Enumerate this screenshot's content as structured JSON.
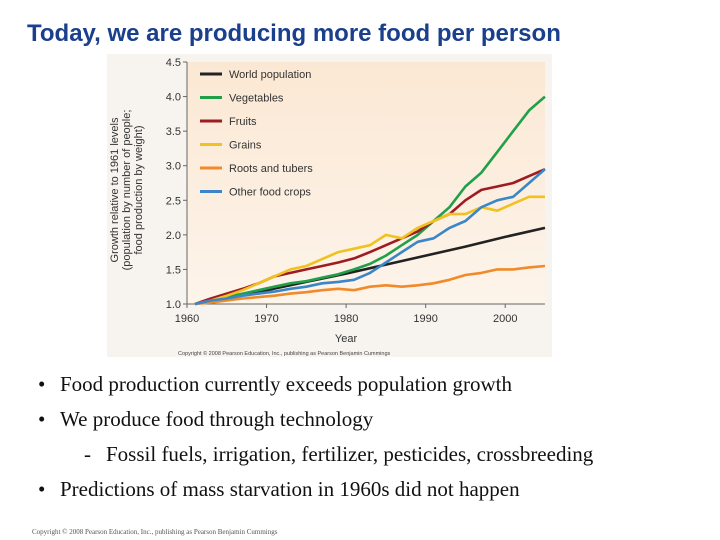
{
  "slide": {
    "title": "Today, we are producing more food per person",
    "footer": "Copyright © 2008 Pearson Education, Inc., publishing as Pearson Benjamin Cummings"
  },
  "bullets": [
    {
      "marker": "•",
      "text": "Food production currently exceeds population growth"
    },
    {
      "marker": "•",
      "text": "We produce food through technology"
    },
    {
      "marker": "-",
      "text": "Fossil fuels, irrigation, fertilizer, pesticides, crossbreeding",
      "sub": true
    },
    {
      "marker": "•",
      "text": "Predictions of mass starvation in 1960s did not happen"
    }
  ],
  "chart_data": {
    "type": "line",
    "title": "",
    "xlabel": "Year",
    "ylabel": [
      "Growth relative to 1961 levels",
      "(population by number of people;",
      "food production by weight)"
    ],
    "xlim": [
      1960,
      2005
    ],
    "ylim": [
      1.0,
      4.5
    ],
    "xticks": [
      "1960",
      "1970",
      "1980",
      "1990",
      "2000"
    ],
    "yticks": [
      "1.0",
      "1.5",
      "2.0",
      "2.5",
      "3.0",
      "3.5",
      "4.0",
      "4.5"
    ],
    "copyright": "Copyright © 2008 Pearson Education, Inc., publishing as Pearson Benjamin Cummings",
    "legend_position": "top-left",
    "series": [
      {
        "name": "World population",
        "color": "#222222",
        "x": [
          1961,
          1965,
          1970,
          1975,
          1980,
          1985,
          1990,
          1995,
          2000,
          2005
        ],
        "y": [
          1.0,
          1.1,
          1.2,
          1.32,
          1.44,
          1.57,
          1.7,
          1.83,
          1.97,
          2.1
        ]
      },
      {
        "name": "Vegetables",
        "color": "#21a04a",
        "x": [
          1961,
          1963,
          1965,
          1967,
          1969,
          1971,
          1973,
          1975,
          1977,
          1979,
          1981,
          1983,
          1985,
          1987,
          1989,
          1991,
          1993,
          1995,
          1997,
          1999,
          2001,
          2003,
          2005
        ],
        "y": [
          1.0,
          1.05,
          1.1,
          1.15,
          1.2,
          1.25,
          1.3,
          1.33,
          1.38,
          1.43,
          1.5,
          1.58,
          1.7,
          1.85,
          2.0,
          2.2,
          2.4,
          2.7,
          2.9,
          3.2,
          3.5,
          3.8,
          4.0
        ]
      },
      {
        "name": "Fruits",
        "color": "#9e1b22",
        "x": [
          1961,
          1963,
          1965,
          1967,
          1969,
          1971,
          1973,
          1975,
          1977,
          1979,
          1981,
          1983,
          1985,
          1987,
          1989,
          1991,
          1993,
          1995,
          1997,
          1999,
          2001,
          2003,
          2005
        ],
        "y": [
          1.0,
          1.08,
          1.15,
          1.22,
          1.3,
          1.4,
          1.45,
          1.5,
          1.55,
          1.6,
          1.66,
          1.75,
          1.85,
          1.95,
          2.05,
          2.2,
          2.3,
          2.5,
          2.65,
          2.7,
          2.75,
          2.85,
          2.95
        ]
      },
      {
        "name": "Grains",
        "color": "#f0c21f",
        "x": [
          1961,
          1963,
          1965,
          1967,
          1969,
          1971,
          1973,
          1975,
          1977,
          1979,
          1981,
          1983,
          1985,
          1987,
          1989,
          1991,
          1993,
          1995,
          1997,
          1999,
          2001,
          2003,
          2005
        ],
        "y": [
          1.0,
          1.05,
          1.12,
          1.2,
          1.3,
          1.4,
          1.5,
          1.55,
          1.65,
          1.75,
          1.8,
          1.85,
          2.0,
          1.95,
          2.1,
          2.2,
          2.3,
          2.3,
          2.4,
          2.35,
          2.45,
          2.55,
          2.55
        ]
      },
      {
        "name": "Roots and tubers",
        "color": "#f08a2a",
        "x": [
          1961,
          1963,
          1965,
          1967,
          1969,
          1971,
          1973,
          1975,
          1977,
          1979,
          1981,
          1983,
          1985,
          1987,
          1989,
          1991,
          1993,
          1995,
          1997,
          1999,
          2001,
          2003,
          2005
        ],
        "y": [
          1.0,
          1.02,
          1.05,
          1.08,
          1.1,
          1.12,
          1.15,
          1.17,
          1.2,
          1.22,
          1.2,
          1.25,
          1.27,
          1.25,
          1.27,
          1.3,
          1.35,
          1.42,
          1.45,
          1.5,
          1.5,
          1.53,
          1.55
        ]
      },
      {
        "name": "Other food crops",
        "color": "#3a86c8",
        "x": [
          1961,
          1963,
          1965,
          1967,
          1969,
          1971,
          1973,
          1975,
          1977,
          1979,
          1981,
          1983,
          1985,
          1987,
          1989,
          1991,
          1993,
          1995,
          1997,
          1999,
          2001,
          2003,
          2005
        ],
        "y": [
          1.0,
          1.05,
          1.08,
          1.12,
          1.15,
          1.18,
          1.22,
          1.25,
          1.3,
          1.32,
          1.35,
          1.45,
          1.6,
          1.75,
          1.9,
          1.95,
          2.1,
          2.2,
          2.4,
          2.5,
          2.55,
          2.75,
          2.95
        ]
      }
    ]
  }
}
